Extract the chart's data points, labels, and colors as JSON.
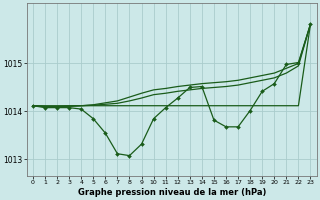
{
  "background_color": "#cce8e8",
  "grid_color": "#aacccc",
  "line_color": "#1a5c1a",
  "title": "Graphe pression niveau de la mer (hPa)",
  "xlim": [
    -0.5,
    23.5
  ],
  "ylim": [
    1012.65,
    1016.25
  ],
  "yticks": [
    1013,
    1014,
    1015
  ],
  "xticks": [
    0,
    1,
    2,
    3,
    4,
    5,
    6,
    7,
    8,
    9,
    10,
    11,
    12,
    13,
    14,
    15,
    16,
    17,
    18,
    19,
    20,
    21,
    22,
    23
  ],
  "series1": [
    1014.12,
    1014.08,
    1014.08,
    1014.08,
    1014.05,
    1013.85,
    1013.55,
    1013.12,
    1013.08,
    1013.32,
    1013.85,
    1014.08,
    1014.28,
    1014.5,
    1014.52,
    1013.82,
    1013.68,
    1013.68,
    1014.02,
    1014.42,
    1014.58,
    1014.98,
    1015.02,
    1015.82
  ],
  "series_top": [
    1014.12,
    1014.12,
    1014.12,
    1014.12,
    1014.12,
    1014.12,
    1014.12,
    1014.12,
    1014.12,
    1014.12,
    1014.12,
    1014.12,
    1014.12,
    1014.12,
    1014.12,
    1014.12,
    1014.12,
    1014.12,
    1014.12,
    1014.12,
    1014.12,
    1014.12,
    1014.12,
    1015.82
  ],
  "series_mid1": [
    1014.12,
    1014.1,
    1014.1,
    1014.11,
    1014.12,
    1014.13,
    1014.15,
    1014.17,
    1014.22,
    1014.28,
    1014.35,
    1014.38,
    1014.42,
    1014.45,
    1014.48,
    1014.5,
    1014.52,
    1014.55,
    1014.6,
    1014.65,
    1014.7,
    1014.8,
    1014.95,
    1015.82
  ],
  "series_mid2": [
    1014.12,
    1014.1,
    1014.1,
    1014.11,
    1014.12,
    1014.14,
    1014.18,
    1014.22,
    1014.3,
    1014.38,
    1014.45,
    1014.48,
    1014.52,
    1014.55,
    1014.58,
    1014.6,
    1014.62,
    1014.65,
    1014.7,
    1014.75,
    1014.8,
    1014.9,
    1015.0,
    1015.82
  ]
}
